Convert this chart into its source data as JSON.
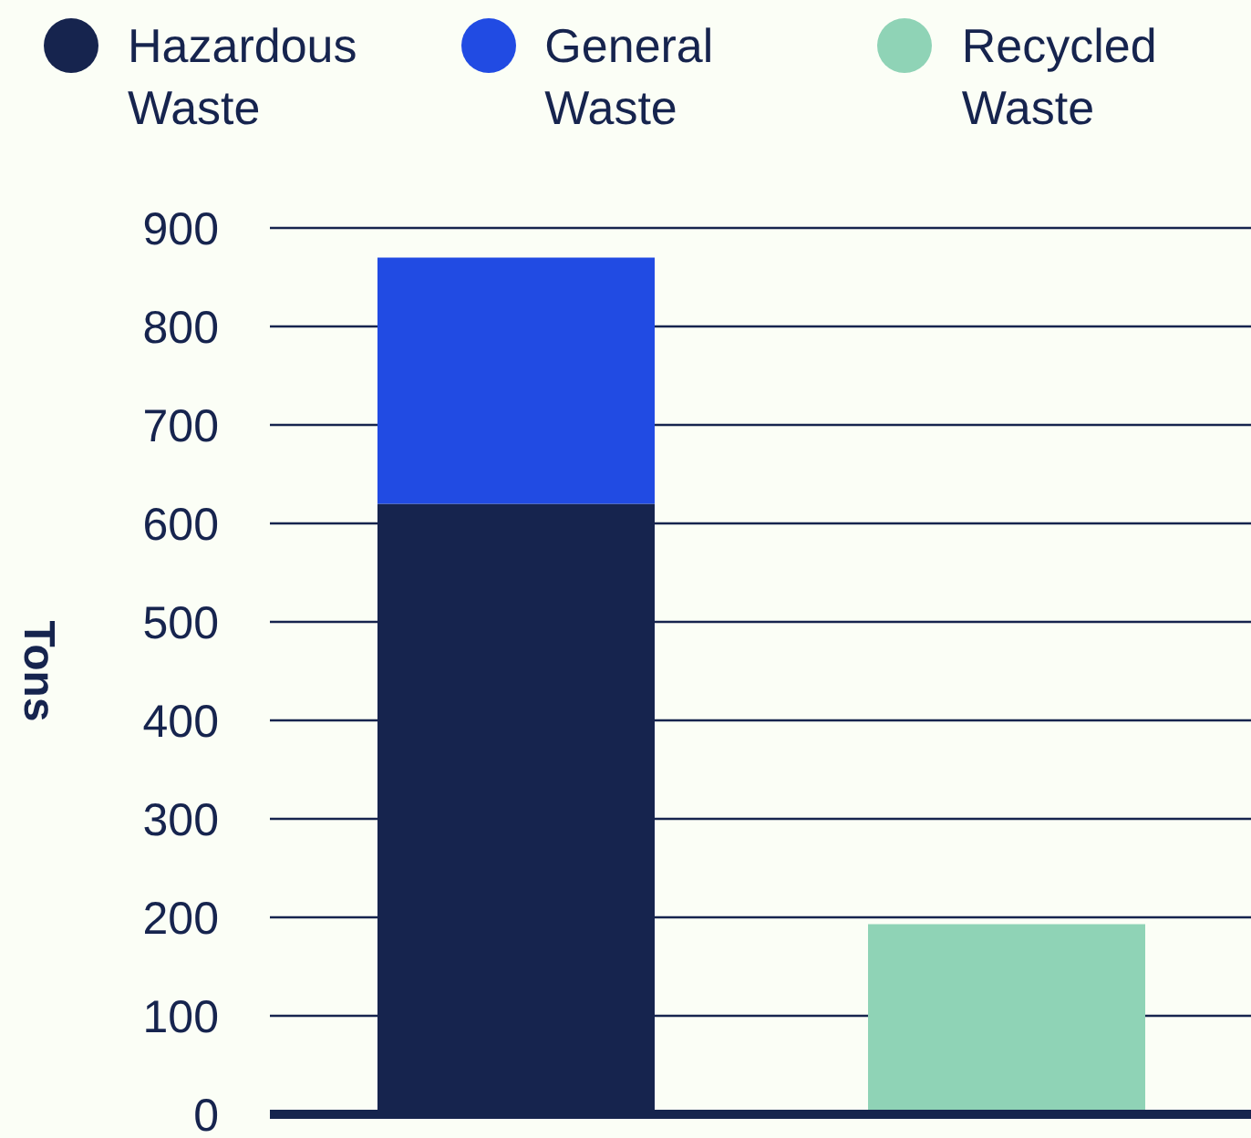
{
  "chart_data": {
    "type": "bar",
    "ylabel": "Tons",
    "categories": [
      null,
      null
    ],
    "stacked": true,
    "series": [
      {
        "name": "Hazardous Waste",
        "color": "#16244e",
        "values": [
          620,
          null
        ]
      },
      {
        "name": "General Waste",
        "color": "#214be3",
        "values": [
          250,
          null
        ]
      },
      {
        "name": "Recycled Waste",
        "color": "#8fd3b6",
        "values": [
          null,
          193
        ]
      }
    ],
    "ylim": [
      0,
      900
    ],
    "yticks": [
      0,
      100,
      200,
      300,
      400,
      500,
      600,
      700,
      800,
      900
    ],
    "grid": "y",
    "legend": "top"
  }
}
